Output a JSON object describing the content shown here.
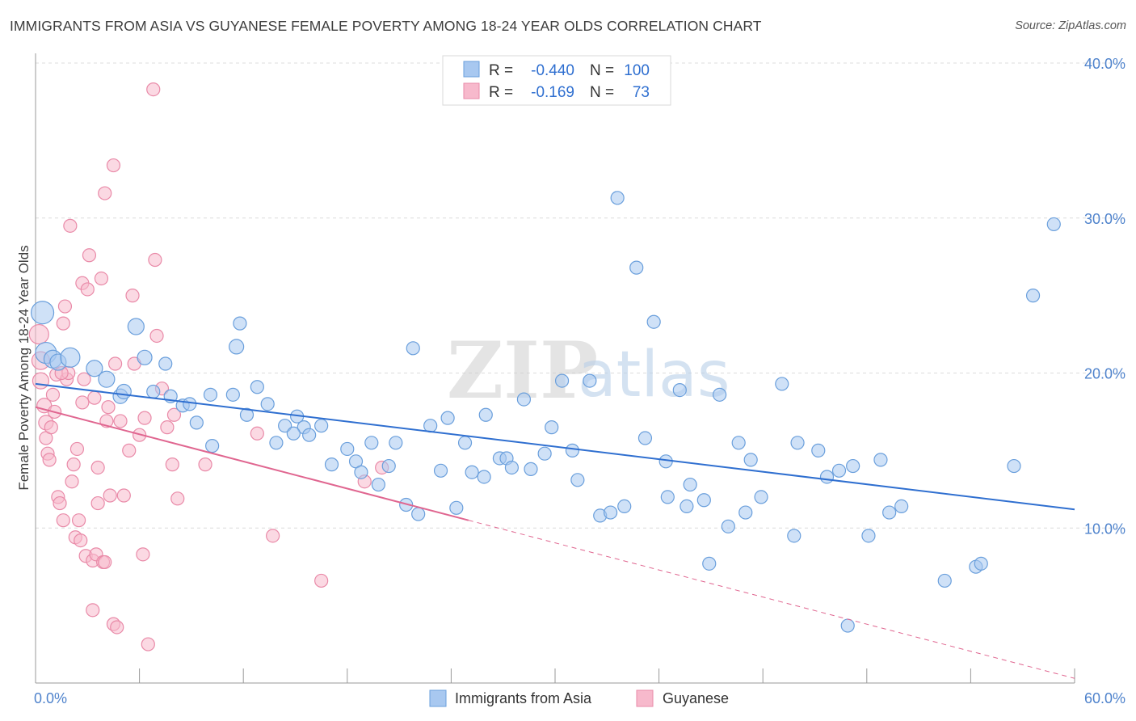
{
  "title": "IMMIGRANTS FROM ASIA VS GUYANESE FEMALE POVERTY AMONG 18-24 YEAR OLDS CORRELATION CHART",
  "source": "Source: ZipAtlas.com",
  "watermark": {
    "zip": "ZIP",
    "atlas": "atlas"
  },
  "legend": {
    "r_label": "R =",
    "n_label": "N =",
    "rows": [
      {
        "r": "-0.440",
        "n": "100",
        "color": "#a8c8f0"
      },
      {
        "r": "-0.169",
        "n": "73",
        "color": "#f7b9cc"
      }
    ]
  },
  "bottom_legend": {
    "items": [
      {
        "label": "Immigrants from Asia",
        "color": "#a8c8f0"
      },
      {
        "label": "Guyanese",
        "color": "#f7b9cc"
      }
    ]
  },
  "colors": {
    "blue_fill": "#a8c8f0",
    "blue_stroke": "#6a9fdc",
    "blue_line": "#2f6fd0",
    "pink_fill": "#f7b9cc",
    "pink_stroke": "#e98aa8",
    "pink_line": "#e06690",
    "grid": "#dcdcdc",
    "axis": "#999999"
  },
  "chart_data": {
    "type": "scatter",
    "title": "IMMIGRANTS FROM ASIA VS GUYANESE FEMALE POVERTY AMONG 18-24 YEAR OLDS CORRELATION CHART",
    "xlabel": "",
    "ylabel": "Female Poverty Among 18-24 Year Olds",
    "xlim": [
      0,
      60
    ],
    "ylim": [
      0,
      40
    ],
    "x_tick_labels": [
      "0.0%",
      "60.0%"
    ],
    "y_ticks": [
      10,
      20,
      30,
      40
    ],
    "y_tick_labels": [
      "10.0%",
      "20.0%",
      "30.0%",
      "40.0%"
    ],
    "grid": true,
    "legend_position": "top-center",
    "series": [
      {
        "name": "Immigrants from Asia",
        "r": -0.44,
        "n": 100,
        "trend": {
          "x0": 0,
          "y0": 19.3,
          "x1": 60,
          "y1": 11.2
        },
        "points": [
          [
            0.4,
            23.9,
            14
          ],
          [
            0.6,
            21.3,
            13
          ],
          [
            1.0,
            20.9,
            11
          ],
          [
            1.3,
            20.7,
            10
          ],
          [
            2.0,
            21.0,
            12
          ],
          [
            3.4,
            20.3,
            10
          ],
          [
            4.1,
            19.6,
            10
          ],
          [
            4.9,
            18.5,
            9
          ],
          [
            5.1,
            18.8,
            9
          ],
          [
            5.8,
            23.0,
            10
          ],
          [
            6.3,
            21.0,
            9
          ],
          [
            6.8,
            18.8,
            8
          ],
          [
            7.5,
            20.6,
            8
          ],
          [
            7.8,
            18.5,
            8
          ],
          [
            8.5,
            17.9,
            8
          ],
          [
            8.9,
            18.0,
            8
          ],
          [
            9.3,
            16.8,
            8
          ],
          [
            10.1,
            18.6,
            8
          ],
          [
            10.2,
            15.3,
            8
          ],
          [
            11.4,
            18.6,
            8
          ],
          [
            11.6,
            21.7,
            9
          ],
          [
            11.8,
            23.2,
            8
          ],
          [
            12.2,
            17.3,
            8
          ],
          [
            12.8,
            19.1,
            8
          ],
          [
            13.4,
            18.0,
            8
          ],
          [
            13.9,
            15.5,
            8
          ],
          [
            14.4,
            16.6,
            8
          ],
          [
            15.1,
            17.2,
            8
          ],
          [
            15.5,
            16.5,
            8
          ],
          [
            15.8,
            16.0,
            8
          ],
          [
            16.5,
            16.6,
            8
          ],
          [
            17.1,
            14.1,
            8
          ],
          [
            18.0,
            15.1,
            8
          ],
          [
            18.5,
            14.3,
            8
          ],
          [
            18.8,
            13.6,
            8
          ],
          [
            19.4,
            15.5,
            8
          ],
          [
            19.8,
            12.8,
            8
          ],
          [
            20.4,
            14.0,
            8
          ],
          [
            20.8,
            15.5,
            8
          ],
          [
            21.4,
            11.5,
            8
          ],
          [
            21.8,
            21.6,
            8
          ],
          [
            22.1,
            10.9,
            8
          ],
          [
            22.8,
            16.6,
            8
          ],
          [
            23.4,
            13.7,
            8
          ],
          [
            23.8,
            17.1,
            8
          ],
          [
            24.3,
            11.3,
            8
          ],
          [
            24.8,
            15.5,
            8
          ],
          [
            25.2,
            13.6,
            8
          ],
          [
            25.9,
            13.3,
            8
          ],
          [
            26.0,
            17.3,
            8
          ],
          [
            26.8,
            14.5,
            8
          ],
          [
            27.2,
            14.5,
            8
          ],
          [
            27.5,
            13.9,
            8
          ],
          [
            28.2,
            18.3,
            8
          ],
          [
            28.6,
            13.8,
            8
          ],
          [
            29.4,
            14.8,
            8
          ],
          [
            29.8,
            16.5,
            8
          ],
          [
            30.4,
            19.5,
            8
          ],
          [
            31.0,
            15.0,
            8
          ],
          [
            31.3,
            13.1,
            8
          ],
          [
            32.0,
            19.5,
            8
          ],
          [
            32.6,
            10.8,
            8
          ],
          [
            33.2,
            11.0,
            8
          ],
          [
            33.6,
            31.3,
            8
          ],
          [
            34.0,
            11.4,
            8
          ],
          [
            34.7,
            26.8,
            8
          ],
          [
            35.2,
            15.8,
            8
          ],
          [
            35.7,
            23.3,
            8
          ],
          [
            36.5,
            12.0,
            8
          ],
          [
            37.2,
            18.9,
            8
          ],
          [
            37.6,
            11.4,
            8
          ],
          [
            37.8,
            12.8,
            8
          ],
          [
            38.6,
            11.8,
            8
          ],
          [
            38.9,
            7.7,
            8
          ],
          [
            39.5,
            18.6,
            8
          ],
          [
            40.0,
            10.1,
            8
          ],
          [
            40.6,
            15.5,
            8
          ],
          [
            41.0,
            11.0,
            8
          ],
          [
            41.3,
            14.4,
            8
          ],
          [
            41.9,
            12.0,
            8
          ],
          [
            43.1,
            19.3,
            8
          ],
          [
            43.8,
            9.5,
            8
          ],
          [
            44.0,
            15.5,
            8
          ],
          [
            45.2,
            15.0,
            8
          ],
          [
            45.7,
            13.3,
            8
          ],
          [
            46.4,
            13.7,
            8
          ],
          [
            46.9,
            3.7,
            8
          ],
          [
            47.2,
            14.0,
            8
          ],
          [
            48.1,
            9.5,
            8
          ],
          [
            48.8,
            14.4,
            8
          ],
          [
            49.3,
            11.0,
            8
          ],
          [
            50.0,
            11.4,
            8
          ],
          [
            52.5,
            6.6,
            8
          ],
          [
            54.3,
            7.5,
            8
          ],
          [
            54.6,
            7.7,
            8
          ],
          [
            56.5,
            14.0,
            8
          ],
          [
            57.6,
            25.0,
            8
          ],
          [
            58.8,
            29.6,
            8
          ],
          [
            14.9,
            16.1,
            8
          ],
          [
            36.4,
            14.3,
            8
          ]
        ]
      },
      {
        "name": "Guyanese",
        "r": -0.169,
        "n": 73,
        "trend": {
          "x0": 0,
          "y0": 17.8,
          "x1": 25,
          "y1": 10.5,
          "dash_to_x": 60,
          "dash_to_y": 0.3
        },
        "points": [
          [
            0.2,
            22.5,
            12
          ],
          [
            0.3,
            20.8,
            11
          ],
          [
            0.3,
            19.5,
            10
          ],
          [
            0.5,
            17.9,
            9
          ],
          [
            0.6,
            16.8,
            9
          ],
          [
            0.6,
            15.8,
            8
          ],
          [
            0.7,
            14.8,
            8
          ],
          [
            0.8,
            14.4,
            8
          ],
          [
            0.9,
            16.5,
            8
          ],
          [
            1.0,
            18.6,
            8
          ],
          [
            1.1,
            17.5,
            8
          ],
          [
            1.2,
            19.9,
            8
          ],
          [
            1.3,
            12.0,
            8
          ],
          [
            1.4,
            11.6,
            8
          ],
          [
            1.6,
            10.5,
            8
          ],
          [
            1.6,
            23.2,
            8
          ],
          [
            1.7,
            24.3,
            8
          ],
          [
            1.8,
            19.6,
            8
          ],
          [
            1.9,
            20.0,
            8
          ],
          [
            2.0,
            29.5,
            8
          ],
          [
            2.1,
            13.0,
            8
          ],
          [
            2.2,
            14.1,
            8
          ],
          [
            2.3,
            9.4,
            8
          ],
          [
            2.4,
            15.1,
            8
          ],
          [
            2.5,
            10.5,
            8
          ],
          [
            2.6,
            9.2,
            8
          ],
          [
            2.7,
            25.8,
            8
          ],
          [
            2.7,
            18.1,
            8
          ],
          [
            2.9,
            8.2,
            8
          ],
          [
            3.0,
            25.4,
            8
          ],
          [
            3.1,
            27.6,
            8
          ],
          [
            3.3,
            7.9,
            8
          ],
          [
            3.3,
            4.7,
            8
          ],
          [
            3.4,
            18.4,
            8
          ],
          [
            3.5,
            8.3,
            8
          ],
          [
            3.6,
            13.9,
            8
          ],
          [
            3.6,
            11.6,
            8
          ],
          [
            3.8,
            26.1,
            8
          ],
          [
            3.9,
            7.8,
            8
          ],
          [
            4.0,
            7.8,
            8
          ],
          [
            4.0,
            31.6,
            8
          ],
          [
            4.1,
            16.9,
            8
          ],
          [
            4.2,
            17.8,
            8
          ],
          [
            4.3,
            12.1,
            8
          ],
          [
            4.5,
            3.8,
            8
          ],
          [
            4.5,
            33.4,
            8
          ],
          [
            4.6,
            20.6,
            8
          ],
          [
            4.7,
            3.6,
            8
          ],
          [
            4.9,
            16.9,
            8
          ],
          [
            5.1,
            12.1,
            8
          ],
          [
            5.4,
            15.0,
            8
          ],
          [
            5.6,
            25.0,
            8
          ],
          [
            5.7,
            20.6,
            8
          ],
          [
            6.0,
            16.0,
            8
          ],
          [
            6.2,
            8.3,
            8
          ],
          [
            6.3,
            17.1,
            8
          ],
          [
            6.5,
            2.5,
            8
          ],
          [
            6.8,
            38.3,
            8
          ],
          [
            6.9,
            27.3,
            8
          ],
          [
            7.0,
            22.4,
            8
          ],
          [
            7.3,
            19.0,
            8
          ],
          [
            7.6,
            16.5,
            8
          ],
          [
            7.9,
            14.1,
            8
          ],
          [
            8.0,
            17.3,
            8
          ],
          [
            8.2,
            11.9,
            8
          ],
          [
            9.8,
            14.1,
            8
          ],
          [
            12.8,
            16.1,
            8
          ],
          [
            13.7,
            9.5,
            8
          ],
          [
            16.5,
            6.6,
            8
          ],
          [
            19.0,
            13.0,
            8
          ],
          [
            20.0,
            13.9,
            8
          ],
          [
            2.8,
            19.6,
            8
          ],
          [
            1.5,
            20.0,
            8
          ]
        ]
      }
    ]
  }
}
